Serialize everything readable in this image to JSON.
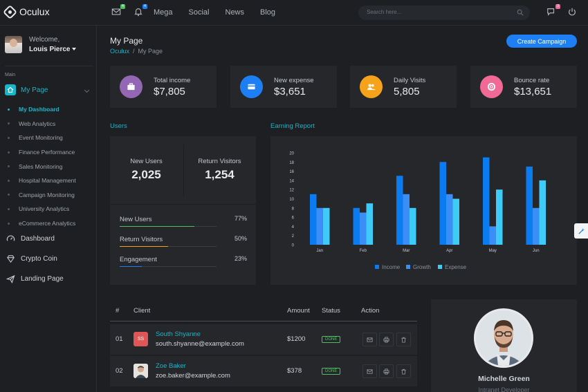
{
  "app": {
    "name": "Oculux"
  },
  "topbar": {
    "mail_badge": "4",
    "bell_badge": "4",
    "chat_badge": "3",
    "nav": [
      "Mega",
      "Social",
      "News",
      "Blog"
    ],
    "search_placeholder": "Search here..."
  },
  "sidebar": {
    "welcome": "Welcome,",
    "user_name": "Louis Pierce",
    "section_label": "Main",
    "main_item": "My Page",
    "submenu": [
      "My Dashboard",
      "Web Analytics",
      "Event Monitoring",
      "Finance Performance",
      "Sales Monitoring",
      "Hospital Management",
      "Campaign Monitoring",
      "University Analytics",
      "eCommerce Analytics"
    ],
    "items": [
      "Dashboard",
      "Crypto Coin",
      "Landing Page"
    ]
  },
  "page": {
    "title": "My Page",
    "breadcrumb_root": "Oculux",
    "breadcrumb_sep": "/",
    "breadcrumb_current": "My Page",
    "cta": "Create Campaign"
  },
  "stats": [
    {
      "label": "Total income",
      "value": "$7,805",
      "color": "#9367b4",
      "icon": "briefcase-icon"
    },
    {
      "label": "New expense",
      "value": "$3,651",
      "color": "#1e7ff5",
      "icon": "credit-card-icon"
    },
    {
      "label": "Daily Visits",
      "value": "5,805",
      "color": "#f7a21b",
      "icon": "users-icon"
    },
    {
      "label": "Bounce rate",
      "value": "$13,651",
      "color": "#f06a95",
      "icon": "support-icon"
    }
  ],
  "users": {
    "title": "Users",
    "new_users_label": "New Users",
    "new_users_value": "2,025",
    "return_label": "Return Visitors",
    "return_value": "1,254",
    "progress": [
      {
        "label": "New Users",
        "value": "77%",
        "fraction": 0.77,
        "color": "#4fbf65"
      },
      {
        "label": "Return Visitors",
        "value": "50%",
        "fraction": 0.5,
        "color": "#f7a21b"
      },
      {
        "label": "Engagement",
        "value": "23%",
        "fraction": 0.23,
        "color": "#1e7ff5"
      }
    ]
  },
  "chart_data": {
    "type": "bar",
    "title": "Earning Report",
    "categories": [
      "Jan",
      "Feb",
      "Mar",
      "Apr",
      "May",
      "Jun"
    ],
    "series": [
      {
        "name": "Income",
        "values": [
          11,
          8,
          15,
          18,
          19,
          17
        ],
        "color": "#0b7bf2"
      },
      {
        "name": "Growth",
        "values": [
          8,
          7,
          11,
          11,
          4,
          8
        ],
        "color": "#3c8ef7"
      },
      {
        "name": "Expense",
        "values": [
          8,
          9,
          8,
          10,
          12,
          14
        ],
        "color": "#3ecbf7"
      }
    ],
    "ylim": [
      0,
      20
    ],
    "yticks": [
      0,
      2,
      4,
      6,
      8,
      10,
      12,
      14,
      16,
      18,
      20
    ],
    "legend": "bottom"
  },
  "table": {
    "headers": [
      "#",
      "Client",
      "Amount",
      "Status",
      "Action"
    ],
    "rows": [
      {
        "num": "01",
        "initials": "SS",
        "name": "South Shyanne",
        "email": "south.shyanne@example.com",
        "amount": "$1200",
        "status": "DONE",
        "avatar_color": "#e05555"
      },
      {
        "num": "02",
        "initials": "",
        "name": "Zoe Baker",
        "email": "zoe.baker@example.com",
        "amount": "$378",
        "status": "DONE",
        "avatar_color": "#c9b8aa"
      }
    ]
  },
  "profile": {
    "name": "Michelle Green",
    "role": "Intranet Developer"
  }
}
